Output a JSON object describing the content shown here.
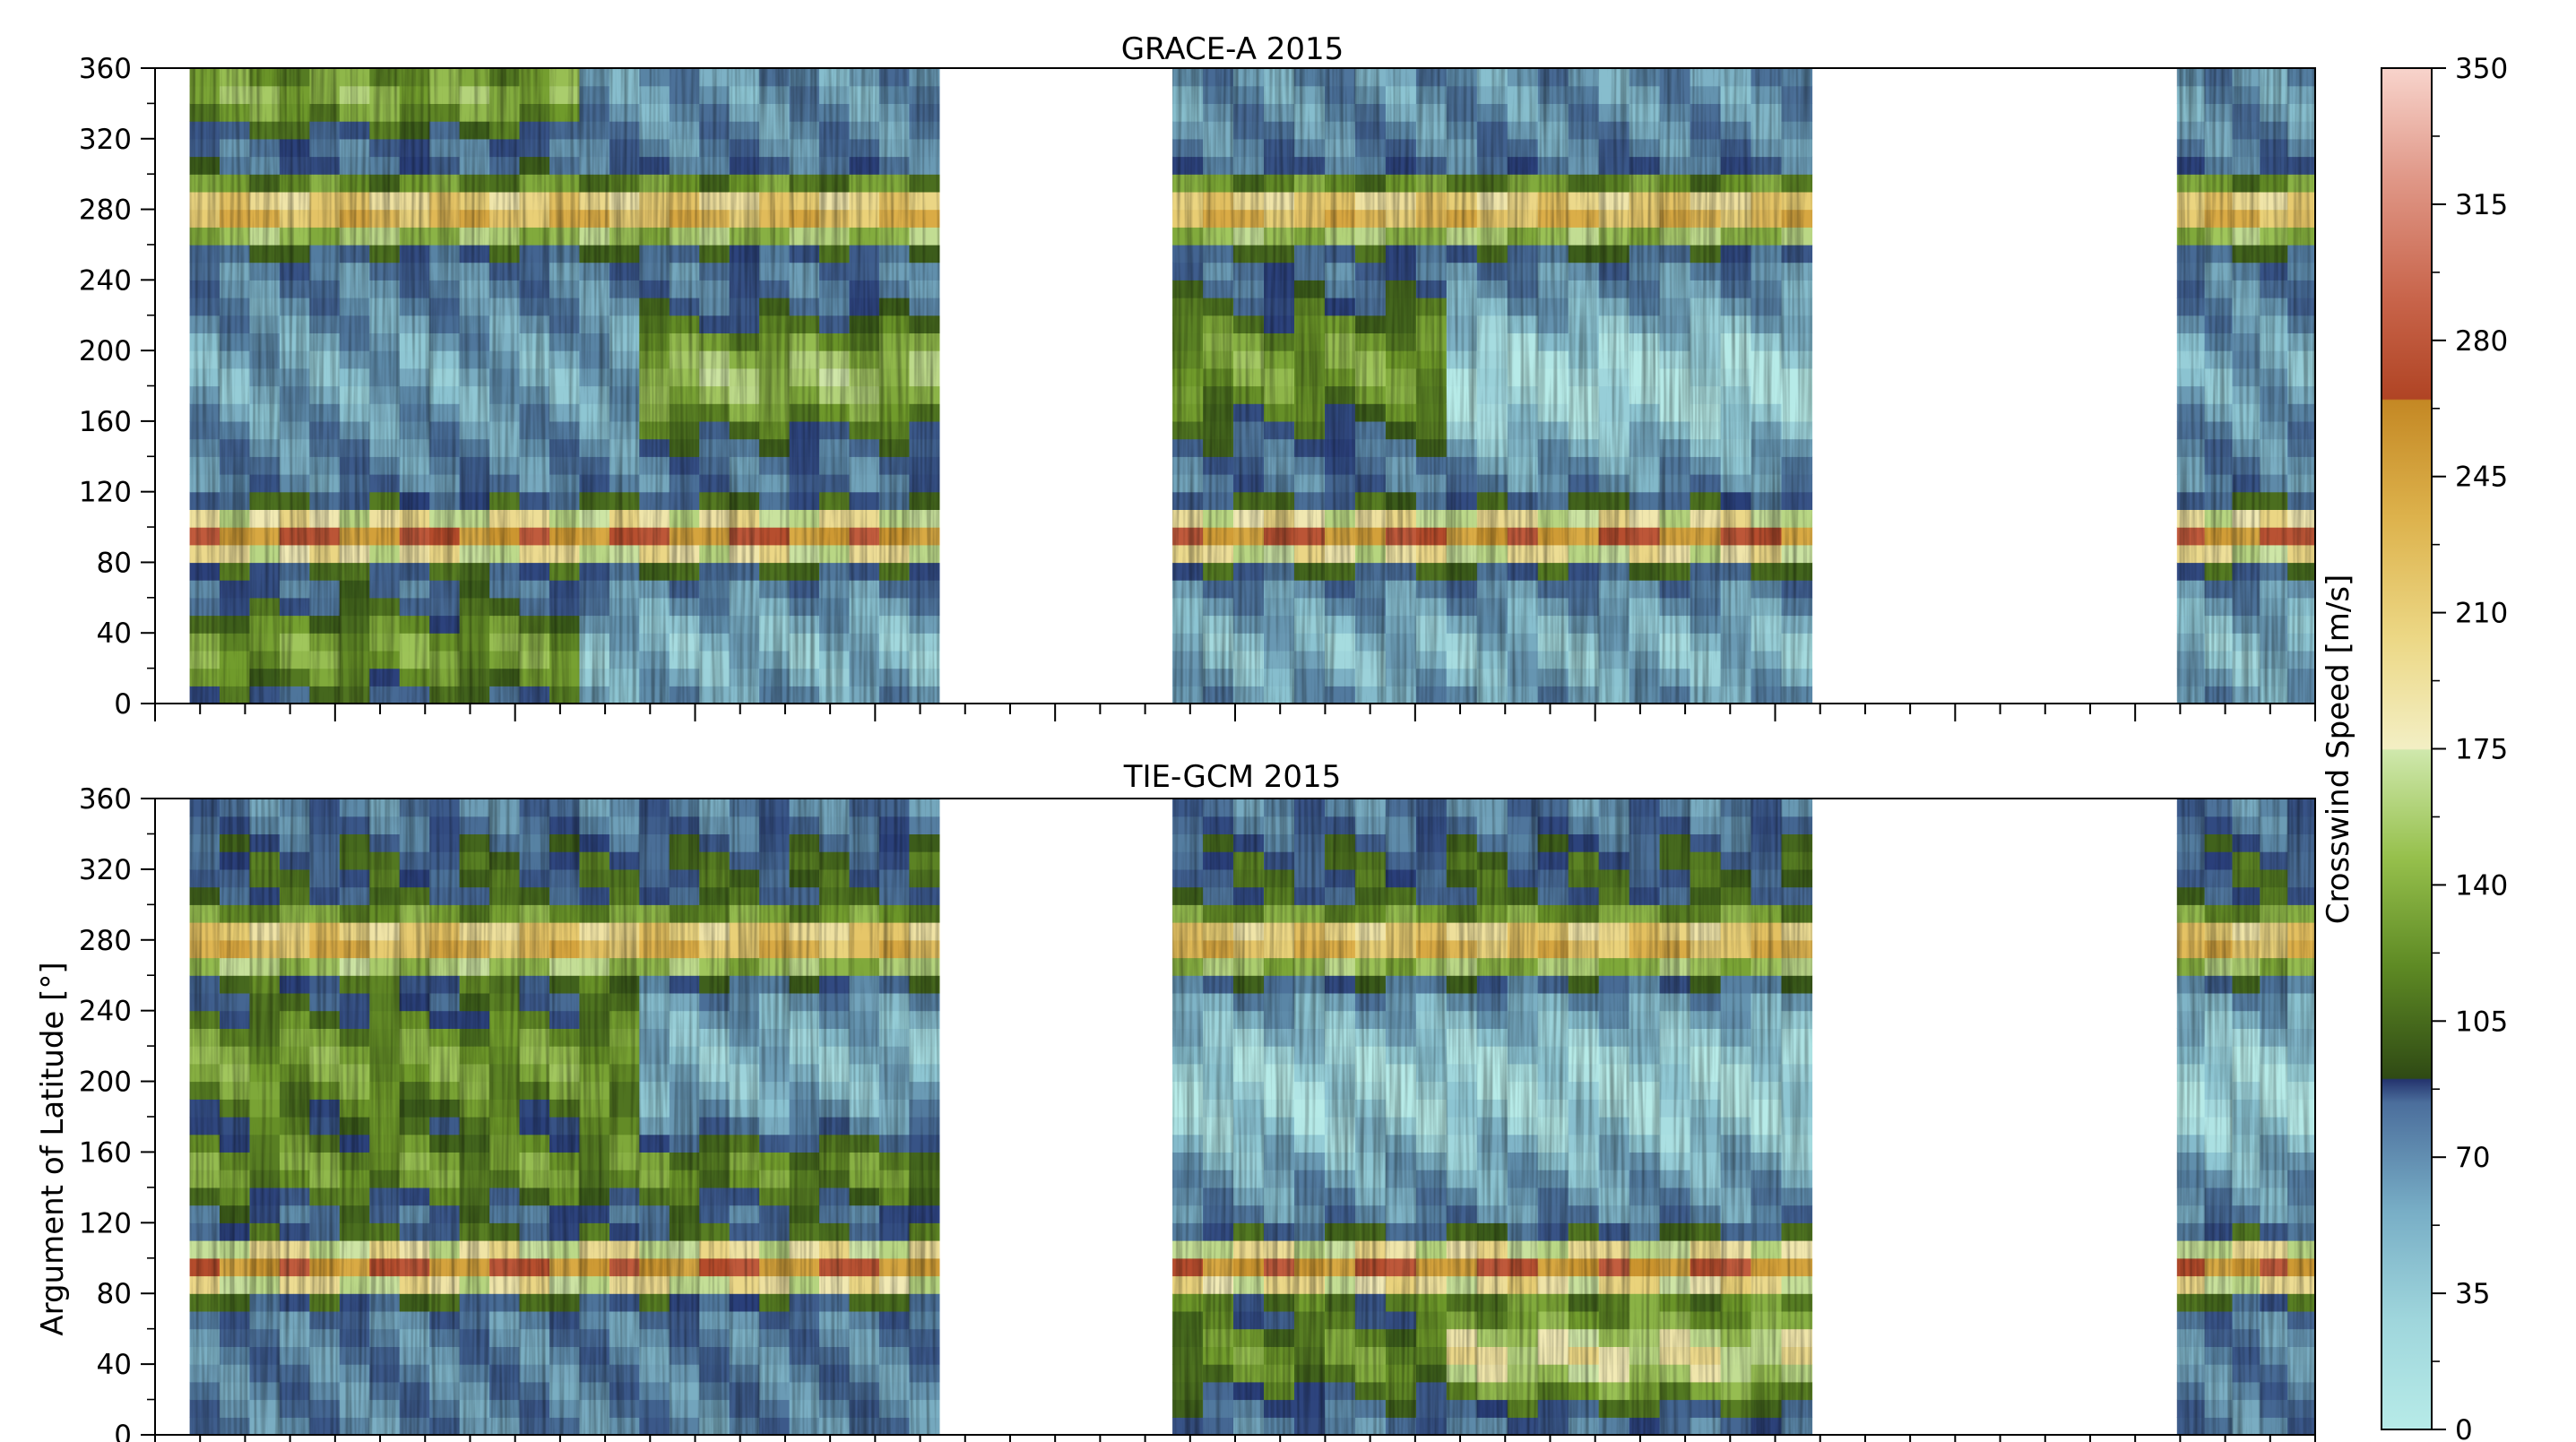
{
  "chart_data": [
    {
      "type": "heatmap",
      "title": "GRACE-A 2015",
      "ylabel": "",
      "ylim": [
        0,
        360
      ],
      "yticks": [
        0,
        40,
        80,
        120,
        160,
        200,
        240,
        280,
        320,
        360
      ],
      "data_coverage": [
        [
          0.016,
          0.363
        ],
        [
          0.471,
          0.767
        ],
        [
          0.936,
          1.0
        ]
      ],
      "description": "Banded crosswind speed field: high speeds (250-350) near 80-110 and 260-300 argument of latitude; low speeds (0-60) broad band 120-220 and near 0-60 / 300-360 in some intervals; moderate green patches (120-170)."
    },
    {
      "type": "heatmap",
      "title": "TIE-GCM 2015",
      "ylabel": "Argument of Latitude [°]",
      "ylim": [
        0,
        360
      ],
      "yticks": [
        0,
        40,
        80,
        120,
        160,
        200,
        240,
        280,
        320,
        360
      ],
      "data_coverage": [
        [
          0.016,
          0.363
        ],
        [
          0.471,
          0.767
        ],
        [
          0.936,
          1.0
        ]
      ]
    }
  ],
  "colorbar": {
    "label": "Crosswind Speed [m/s]",
    "min": 0,
    "max": 350,
    "ticks": [
      0,
      35,
      70,
      105,
      140,
      175,
      210,
      245,
      280,
      315,
      350
    ],
    "segments": [
      {
        "from": 0,
        "to": 90,
        "colors": [
          "#b7ebe8",
          "#8cc4d2",
          "#5a86a6",
          "#2a3f7a"
        ]
      },
      {
        "from": 90,
        "to": 175,
        "colors": [
          "#3a5a1a",
          "#6f9a2a",
          "#9fc55a",
          "#cfe6a8"
        ]
      },
      {
        "from": 175,
        "to": 265,
        "colors": [
          "#f2ebb8",
          "#ead27a",
          "#ddb04a",
          "#c8902a"
        ]
      },
      {
        "from": 265,
        "to": 350,
        "colors": [
          "#b34a2a",
          "#cc6a4e",
          "#e39a88",
          "#f6cfc8"
        ]
      }
    ]
  }
}
